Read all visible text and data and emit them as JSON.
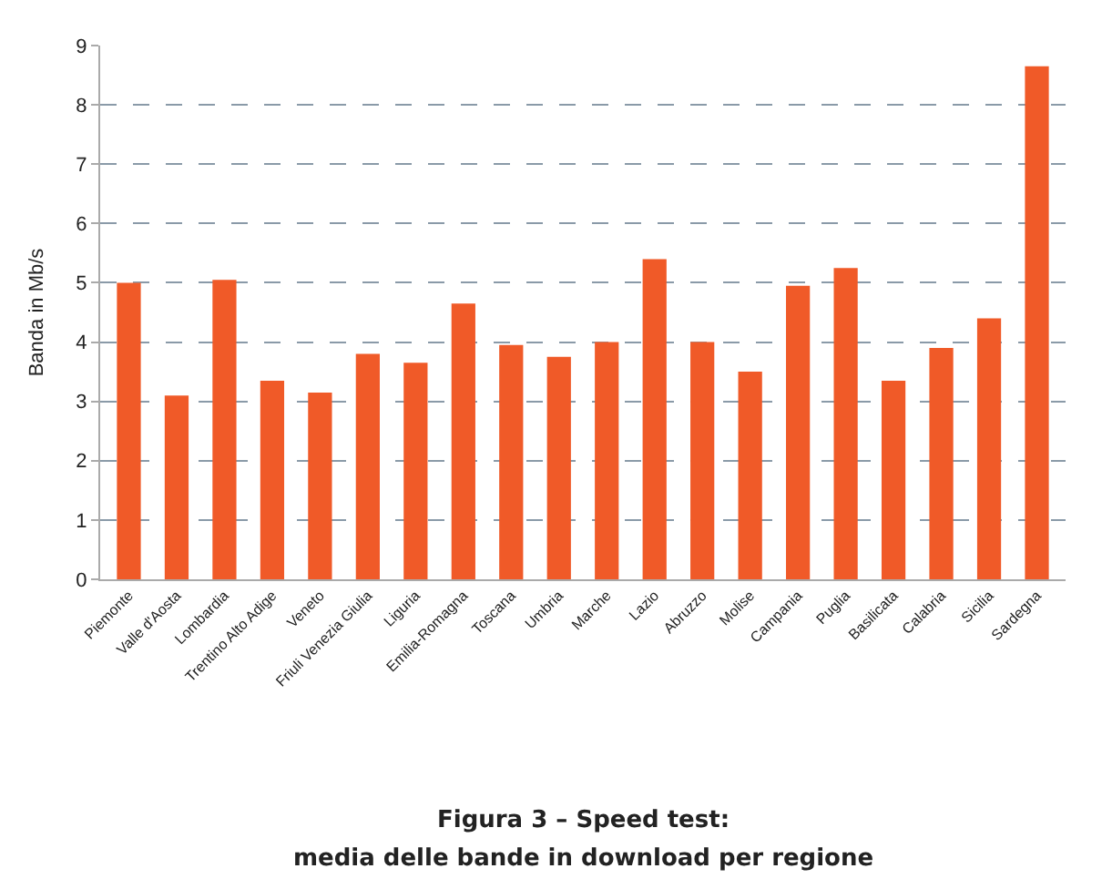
{
  "chart_data": {
    "type": "bar",
    "ylabel": "Banda in Mb/s",
    "categories": [
      "Piemonte",
      "Valle d'Aosta",
      "Lombardia",
      "Trentino Alto Adige",
      "Veneto",
      "Friuli Venezia Giulia",
      "Liguria",
      "Emilia-Romagna",
      "Toscana",
      "Umbria",
      "Marche",
      "Lazio",
      "Abruzzo",
      "Molise",
      "Campania",
      "Puglia",
      "Basilicata",
      "Calabria",
      "Sicilia",
      "Sardegna"
    ],
    "values": [
      5.0,
      3.1,
      5.05,
      3.35,
      3.15,
      3.8,
      3.65,
      4.65,
      3.95,
      3.75,
      4.0,
      5.4,
      4.0,
      3.5,
      4.95,
      5.25,
      3.35,
      3.9,
      4.4,
      8.65
    ],
    "color": "#f05a28",
    "ylim": [
      0,
      9
    ],
    "yticks": [
      0,
      1,
      2,
      3,
      4,
      5,
      6,
      7,
      8,
      9
    ],
    "grid": "y",
    "annotations": [
      "Figura 3 – Speed test:",
      "media delle bande in download per regione"
    ]
  }
}
